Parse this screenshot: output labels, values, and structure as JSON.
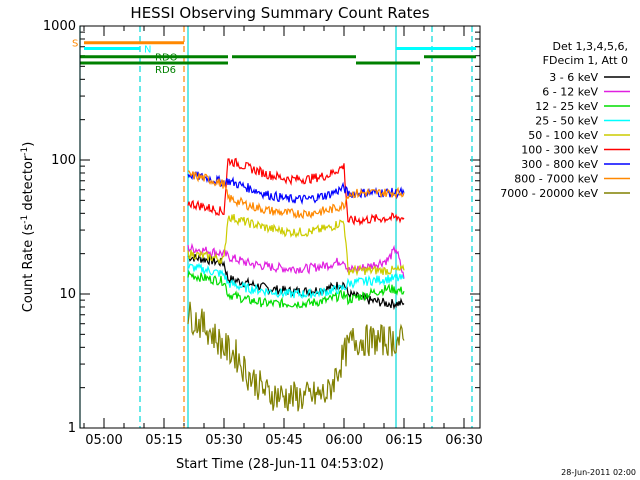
{
  "chart_data": {
    "type": "line",
    "title": "HESSI Observing Summary Count Rates",
    "xlabel": "Start Time (28-Jun-11 04:53:02)",
    "ylabel_parts": [
      "Count Rate (s",
      "-1",
      " detector",
      "-1",
      ")"
    ],
    "y_scale": "log",
    "ylim": [
      1,
      1000
    ],
    "xlim_minutes": [
      294,
      394
    ],
    "y_ticks": [
      {
        "value": 1,
        "label": "1"
      },
      {
        "value": 10,
        "label": "10"
      },
      {
        "value": 100,
        "label": "100"
      },
      {
        "value": 1000,
        "label": "1000"
      }
    ],
    "x_ticks": [
      {
        "minute": 300,
        "label": "05:00"
      },
      {
        "minute": 315,
        "label": "05:15"
      },
      {
        "minute": 330,
        "label": "05:30"
      },
      {
        "minute": 345,
        "label": "05:45"
      },
      {
        "minute": 360,
        "label": "06:00"
      },
      {
        "minute": 375,
        "label": "06:15"
      },
      {
        "minute": 390,
        "label": "06:30"
      }
    ],
    "legend_header": [
      "Det 1,3,4,5,6,",
      "FDecim 1, Att 0"
    ],
    "series": [
      {
        "name": "3 - 6 keV",
        "color": "#000000",
        "points": [
          [
            321,
            19
          ],
          [
            326,
            18
          ],
          [
            330,
            17
          ],
          [
            331,
            13
          ],
          [
            336,
            12
          ],
          [
            341,
            11
          ],
          [
            346,
            10.5
          ],
          [
            351,
            10.5
          ],
          [
            356,
            11
          ],
          [
            360,
            12
          ],
          [
            361,
            10
          ],
          [
            366,
            9
          ],
          [
            371,
            8.5
          ],
          [
            375,
            8.5
          ]
        ]
      },
      {
        "name": "6 - 12 keV",
        "color": "#e020e0",
        "points": [
          [
            321,
            22
          ],
          [
            326,
            21
          ],
          [
            330,
            20
          ],
          [
            331,
            19
          ],
          [
            336,
            17
          ],
          [
            341,
            16
          ],
          [
            346,
            15.5
          ],
          [
            351,
            15.5
          ],
          [
            356,
            16.5
          ],
          [
            360,
            18
          ],
          [
            361,
            15
          ],
          [
            366,
            16
          ],
          [
            371,
            18
          ],
          [
            373,
            22
          ],
          [
            375,
            13
          ]
        ]
      },
      {
        "name": "12 - 25 keV",
        "color": "#00dd00",
        "points": [
          [
            321,
            14
          ],
          [
            326,
            13
          ],
          [
            330,
            12.5
          ],
          [
            331,
            10
          ],
          [
            336,
            9
          ],
          [
            341,
            8.5
          ],
          [
            346,
            8.5
          ],
          [
            351,
            8.5
          ],
          [
            356,
            9
          ],
          [
            360,
            10
          ],
          [
            361,
            9
          ],
          [
            366,
            10
          ],
          [
            371,
            11
          ],
          [
            375,
            10.5
          ]
        ]
      },
      {
        "name": "25 - 50 keV",
        "color": "#00ffff",
        "points": [
          [
            321,
            16
          ],
          [
            326,
            15
          ],
          [
            330,
            14
          ],
          [
            331,
            12
          ],
          [
            336,
            11
          ],
          [
            341,
            10.5
          ],
          [
            346,
            10
          ],
          [
            351,
            10
          ],
          [
            356,
            10.5
          ],
          [
            360,
            11
          ],
          [
            361,
            12
          ],
          [
            366,
            12.5
          ],
          [
            371,
            13
          ],
          [
            375,
            13
          ]
        ]
      },
      {
        "name": "50 - 100 keV",
        "color": "#cccc00",
        "points": [
          [
            321,
            20
          ],
          [
            326,
            19
          ],
          [
            330,
            18
          ],
          [
            331,
            38
          ],
          [
            336,
            34
          ],
          [
            341,
            31
          ],
          [
            346,
            29
          ],
          [
            351,
            29
          ],
          [
            356,
            31
          ],
          [
            360,
            35
          ],
          [
            361,
            15
          ],
          [
            366,
            15
          ],
          [
            371,
            15
          ],
          [
            375,
            15
          ]
        ]
      },
      {
        "name": "100 - 300 keV",
        "color": "#ff0000",
        "points": [
          [
            321,
            48
          ],
          [
            326,
            44
          ],
          [
            330,
            41
          ],
          [
            331,
            100
          ],
          [
            336,
            88
          ],
          [
            341,
            78
          ],
          [
            346,
            72
          ],
          [
            351,
            72
          ],
          [
            356,
            77
          ],
          [
            360,
            90
          ],
          [
            361,
            35
          ],
          [
            366,
            36
          ],
          [
            371,
            37
          ],
          [
            375,
            37
          ]
        ]
      },
      {
        "name": "300 - 800 keV",
        "color": "#0000ff",
        "points": [
          [
            321,
            78
          ],
          [
            326,
            73
          ],
          [
            330,
            68
          ],
          [
            331,
            70
          ],
          [
            336,
            62
          ],
          [
            341,
            55
          ],
          [
            346,
            51
          ],
          [
            351,
            51
          ],
          [
            356,
            55
          ],
          [
            360,
            62
          ],
          [
            361,
            56
          ],
          [
            366,
            57
          ],
          [
            371,
            57
          ],
          [
            375,
            57
          ]
        ]
      },
      {
        "name": "800 - 7000 keV",
        "color": "#ff8800",
        "points": [
          [
            321,
            78
          ],
          [
            326,
            72
          ],
          [
            330,
            66
          ],
          [
            331,
            52
          ],
          [
            336,
            46
          ],
          [
            341,
            42
          ],
          [
            346,
            40
          ],
          [
            351,
            40
          ],
          [
            356,
            42
          ],
          [
            360,
            46
          ],
          [
            361,
            56
          ],
          [
            366,
            57
          ],
          [
            371,
            57
          ],
          [
            375,
            57
          ]
        ]
      },
      {
        "name": "7000 - 20000 keV",
        "color": "#808000",
        "points": [
          [
            321,
            7
          ],
          [
            326,
            5.5
          ],
          [
            330,
            4
          ],
          [
            333,
            3.5
          ],
          [
            336,
            2.5
          ],
          [
            341,
            1.8
          ],
          [
            346,
            1.7
          ],
          [
            351,
            1.7
          ],
          [
            356,
            1.8
          ],
          [
            360,
            3.5
          ],
          [
            362,
            4.5
          ],
          [
            366,
            4.5
          ],
          [
            371,
            4.5
          ],
          [
            375,
            4.5
          ]
        ]
      }
    ],
    "vertical_markers": [
      {
        "minute": 294,
        "color": "#00d8d8",
        "style": "solid"
      },
      {
        "minute": 309,
        "color": "#00d8d8",
        "style": "dashed"
      },
      {
        "minute": 320,
        "color": "#ff8800",
        "style": "dashed"
      },
      {
        "minute": 321,
        "color": "#00d8d8",
        "style": "solid"
      },
      {
        "minute": 373,
        "color": "#00d8d8",
        "style": "solid"
      },
      {
        "minute": 382,
        "color": "#00d8d8",
        "style": "dashed"
      },
      {
        "minute": 392,
        "color": "#00d8d8",
        "style": "dashed"
      }
    ],
    "flag_bars": [
      {
        "label": "S",
        "color": "#ff8800",
        "y": 750,
        "segments": [
          [
            295,
            320
          ]
        ]
      },
      {
        "label": "N",
        "color": "#00ffff",
        "y": 680,
        "segments": [
          [
            295,
            309
          ],
          [
            373,
            393
          ]
        ]
      },
      {
        "label": "RDO",
        "color": "#008000",
        "y": 590,
        "segments": [
          [
            294,
            331
          ],
          [
            332,
            363
          ],
          [
            380,
            393
          ]
        ]
      },
      {
        "label": "RD6",
        "color": "#008000",
        "y": 530,
        "segments": [
          [
            294,
            331
          ],
          [
            363,
            379
          ]
        ]
      }
    ]
  },
  "footer_date": "28-Jun-2011 02:00"
}
